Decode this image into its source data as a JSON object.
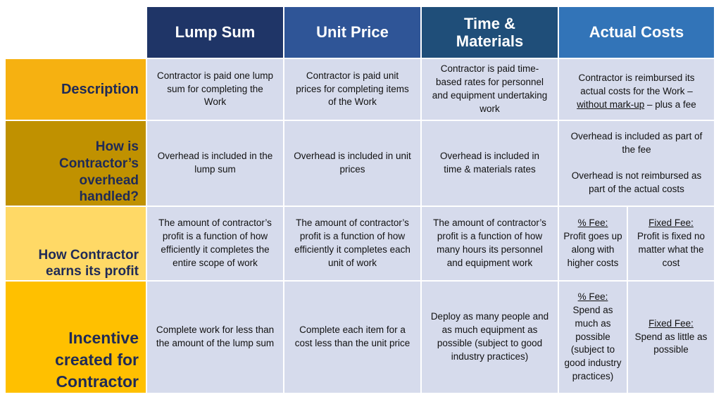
{
  "columns": [
    {
      "label": "Lump Sum",
      "color": "#1f3567"
    },
    {
      "label": "Unit Price",
      "color": "#2f5597"
    },
    {
      "label_lines": [
        "Time &",
        "Materials"
      ],
      "color": "#1f4e79"
    },
    {
      "label": "Actual Costs",
      "color": "#3274b8"
    }
  ],
  "rows": {
    "description": {
      "label": "Description",
      "color": "#f6b111",
      "lump_sum": "Contractor is paid one lump sum for completing the Work",
      "unit_price": "Contractor is paid unit prices for completing items of the Work",
      "time_materials": "Contractor is paid time-based rates for personnel and equipment undertaking work",
      "actual_costs": {
        "part1": "Contractor is reimbursed its actual costs for the Work –",
        "underlined": "without mark-up",
        "part2": " – plus a fee"
      }
    },
    "overhead": {
      "label_lines": [
        "How is",
        "Contractor’s",
        "overhead",
        "handled?"
      ],
      "color": "#c09100",
      "lump_sum": "Overhead is included in the lump sum",
      "unit_price": "Overhead is included in unit prices",
      "time_materials": "Overhead is included in time & materials rates",
      "actual_costs_1": "Overhead is included as part of the fee",
      "actual_costs_2": "Overhead is not reimbursed as part of the actual costs"
    },
    "profit": {
      "label_lines": [
        "How Contractor",
        "earns its profit"
      ],
      "color": "#ffd966",
      "lump_sum": "The amount of contractor’s profit is a function of how efficiently it completes the entire scope of work",
      "unit_price": "The amount of contractor’s profit is a function of how efficiently it completes each unit of work",
      "time_materials": "The amount of contractor’s profit is a function of how many hours its personnel and equipment work",
      "pct_fee_label": "% Fee:",
      "pct_fee_text": "Profit goes up along with higher costs",
      "fixed_fee_label": "Fixed Fee:",
      "fixed_fee_text": "Profit is fixed no matter what the cost"
    },
    "incentive": {
      "label_lines": [
        "Incentive",
        "created for",
        "Contractor"
      ],
      "color": "#ffc000",
      "lump_sum": "Complete work for less than the amount of the lump sum",
      "unit_price": "Complete each item for a cost less than the unit price",
      "time_materials": "Deploy as many people and as much equipment as possible (subject to good industry practices)",
      "pct_fee_label": "% Fee:",
      "pct_fee_text": "Spend as much as possible (subject to good industry practices)",
      "fixed_fee_label": "Fixed Fee:",
      "fixed_fee_text": "Spend as little as possible"
    }
  }
}
